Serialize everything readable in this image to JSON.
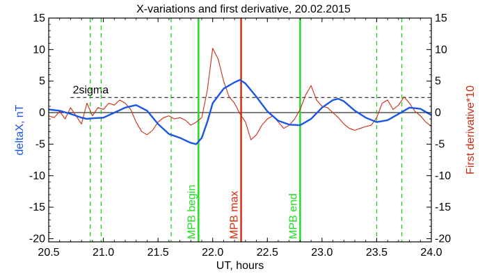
{
  "chart_data": {
    "type": "line",
    "title": "X-variations and first derivative, 20.02.2015",
    "xlabel": "UT, hours",
    "ylabel_left": "deltaX, nT",
    "ylabel_right": "First derivative*10",
    "xlim": [
      20.5,
      24.0
    ],
    "ylim": [
      -20.5,
      15.0
    ],
    "x_ticks": [
      "20.5",
      "21.0",
      "21.5",
      "22.0",
      "22.5",
      "23.0",
      "23.5",
      "24.0"
    ],
    "y_ticks": [
      "15",
      "10",
      "5",
      "0",
      "-5",
      "-10",
      "-15",
      "-20"
    ],
    "colors": {
      "deltaX": "#1a56e6",
      "derivative": "#cc2a10",
      "mpb_boundary": "#22dd22",
      "mpb_max": "#dd2a10",
      "sigma_line": "#000000",
      "guide_lines": "#22cc22"
    },
    "sigma_label": "2sigma",
    "sigma_value": 2.4,
    "zero_line": 0,
    "series": [
      {
        "name": "deltaX, nT",
        "color": "#1a56e6",
        "x": [
          20.5,
          20.6,
          20.7,
          20.8,
          20.85,
          20.9,
          21.0,
          21.1,
          21.2,
          21.3,
          21.4,
          21.5,
          21.6,
          21.7,
          21.8,
          21.85,
          21.9,
          21.95,
          22.0,
          22.1,
          22.2,
          22.25,
          22.3,
          22.4,
          22.5,
          22.6,
          22.7,
          22.8,
          22.9,
          23.0,
          23.1,
          23.15,
          23.2,
          23.3,
          23.4,
          23.5,
          23.6,
          23.7,
          23.8,
          23.9,
          24.0
        ],
        "y": [
          0.5,
          0.3,
          -0.2,
          -0.8,
          -1.0,
          -0.9,
          -0.8,
          0.0,
          0.8,
          1.2,
          0.3,
          -1.8,
          -3.4,
          -4.0,
          -4.8,
          -5.0,
          -4.0,
          -1.5,
          1.5,
          3.8,
          4.8,
          5.2,
          4.6,
          2.5,
          0.2,
          -1.3,
          -1.9,
          -2.0,
          -1.0,
          0.8,
          2.0,
          2.2,
          1.8,
          0.3,
          -0.8,
          -1.5,
          -1.2,
          -0.2,
          0.8,
          0.6,
          -0.4
        ]
      },
      {
        "name": "First derivative*10",
        "color": "#cc2a10",
        "x": [
          20.5,
          20.55,
          20.6,
          20.65,
          20.7,
          20.75,
          20.8,
          20.85,
          20.9,
          20.95,
          21.0,
          21.05,
          21.1,
          21.15,
          21.2,
          21.25,
          21.3,
          21.35,
          21.4,
          21.45,
          21.5,
          21.55,
          21.6,
          21.65,
          21.7,
          21.75,
          21.8,
          21.85,
          21.9,
          21.95,
          22.0,
          22.05,
          22.1,
          22.15,
          22.2,
          22.25,
          22.3,
          22.35,
          22.4,
          22.45,
          22.5,
          22.55,
          22.6,
          22.65,
          22.7,
          22.75,
          22.8,
          22.85,
          22.9,
          22.95,
          23.0,
          23.05,
          23.1,
          23.15,
          23.2,
          23.25,
          23.3,
          23.35,
          23.4,
          23.45,
          23.5,
          23.55,
          23.6,
          23.65,
          23.7,
          23.75,
          23.8,
          23.85,
          23.9,
          23.95,
          24.0
        ],
        "y": [
          -0.5,
          -0.8,
          0.2,
          -1.0,
          0.8,
          -0.5,
          -1.8,
          1.5,
          -0.5,
          0.8,
          0.5,
          1.5,
          1.2,
          2.0,
          1.5,
          0.5,
          -1.5,
          -3.0,
          -3.5,
          -2.8,
          -1.5,
          -0.8,
          -0.5,
          -1.0,
          -0.8,
          -1.2,
          -2.0,
          -1.5,
          -0.8,
          3.5,
          10.2,
          8.5,
          5.0,
          2.5,
          1.5,
          -0.2,
          -1.5,
          -4.3,
          -3.5,
          -2.0,
          -1.0,
          -0.5,
          -1.5,
          -2.5,
          -2.0,
          -1.0,
          0.5,
          2.8,
          4.3,
          2.0,
          1.0,
          0.8,
          0.0,
          -0.8,
          -1.8,
          -2.5,
          -2.8,
          -2.5,
          -2.2,
          -2.0,
          -0.8,
          1.5,
          2.0,
          0.5,
          1.2,
          2.5,
          1.5,
          0.2,
          -0.5,
          -1.5,
          -2.2
        ]
      }
    ],
    "vertical_markers": [
      {
        "x": 20.88,
        "style": "dashed",
        "color": "#22cc22",
        "label": ""
      },
      {
        "x": 20.98,
        "style": "dashed",
        "color": "#22cc22",
        "label": ""
      },
      {
        "x": 21.62,
        "style": "dashed",
        "color": "#22cc22",
        "label": ""
      },
      {
        "x": 21.87,
        "style": "solid",
        "color": "#22dd22",
        "label": "MPB begin"
      },
      {
        "x": 22.26,
        "style": "solid",
        "color": "#dd2a10",
        "label": "MPB max"
      },
      {
        "x": 22.8,
        "style": "solid",
        "color": "#22dd22",
        "label": "MPB end"
      },
      {
        "x": 23.5,
        "style": "dashed",
        "color": "#22cc22",
        "label": ""
      },
      {
        "x": 23.73,
        "style": "dashed",
        "color": "#22cc22",
        "label": ""
      }
    ],
    "grid": false,
    "legend": "none"
  }
}
